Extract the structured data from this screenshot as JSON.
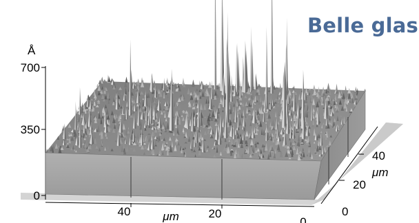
{
  "title": "Belle glass",
  "z_axis": {
    "unit": "Å",
    "ticks": [
      "700",
      "350",
      "0"
    ]
  },
  "x_axis": {
    "unit": "μm",
    "ticks": [
      "40",
      "20",
      "0"
    ]
  },
  "y_axis": {
    "unit": "μm",
    "ticks": [
      "40",
      "20",
      "0"
    ]
  },
  "colors": {
    "title": "#4a6a96",
    "surface": "#8a8a8a",
    "base_front": "#a3a3a3",
    "base_side": "#8c8c8c",
    "floor": "#d0d0d0"
  }
}
